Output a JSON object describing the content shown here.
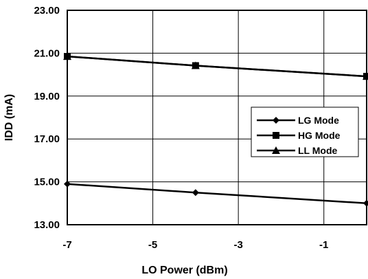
{
  "chart_data": {
    "type": "line",
    "title": "",
    "xlabel": "LO Power (dBm)",
    "ylabel": "IDD (mA)",
    "xlim": [
      -7,
      0
    ],
    "ylim": [
      13,
      23
    ],
    "x_ticks": [
      -7,
      -5,
      -3,
      -1
    ],
    "x_tick_labels": [
      "-7",
      "-5",
      "-3",
      "-1"
    ],
    "y_ticks": [
      13,
      15,
      17,
      19,
      21,
      23
    ],
    "y_tick_labels": [
      "13.00",
      "15.00",
      "17.00",
      "19.00",
      "21.00",
      "23.00"
    ],
    "x_grid": [
      -7,
      -5,
      -3,
      -1,
      0
    ],
    "y_grid": [
      13,
      15,
      17,
      19,
      21,
      23
    ],
    "grid": true,
    "legend_position": "center-right",
    "series": [
      {
        "name": "LG Mode",
        "marker": "diamond",
        "x": [
          -7,
          -4,
          0
        ],
        "y": [
          14.9,
          14.5,
          14.0
        ]
      },
      {
        "name": "HG Mode",
        "marker": "square",
        "x": [
          -7,
          -4,
          0
        ],
        "y": [
          20.85,
          20.42,
          19.92
        ]
      },
      {
        "name": "LL Mode",
        "marker": "triangle",
        "x": [
          -7,
          -4,
          0
        ],
        "y": [
          20.85,
          20.42,
          19.92
        ]
      }
    ],
    "line_color": "#000000"
  }
}
